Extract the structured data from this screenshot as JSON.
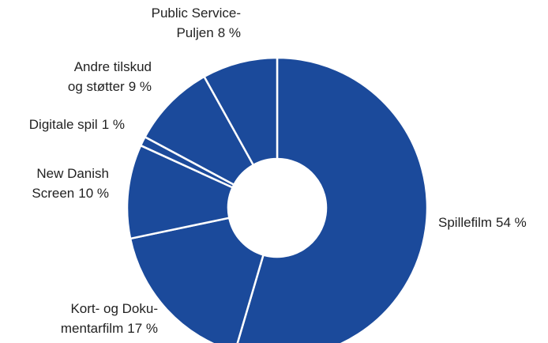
{
  "chart_data": {
    "type": "donut",
    "categories": [
      [
        "Spillefilm"
      ],
      [
        "Kort- og Doku-",
        "mentarfilm"
      ],
      [
        "New Danish",
        "Screen"
      ],
      [
        "Digitale spil"
      ],
      [
        "Andre tilskud",
        "og støtter"
      ],
      [
        "Public Service-",
        "Puljen"
      ]
    ],
    "values": [
      54,
      17,
      10,
      1,
      9,
      8
    ],
    "value_labels": [
      "54 %",
      "17 %",
      "10 %",
      "1 %",
      "9 %",
      "8 %"
    ],
    "color": "#1b4a9b"
  }
}
